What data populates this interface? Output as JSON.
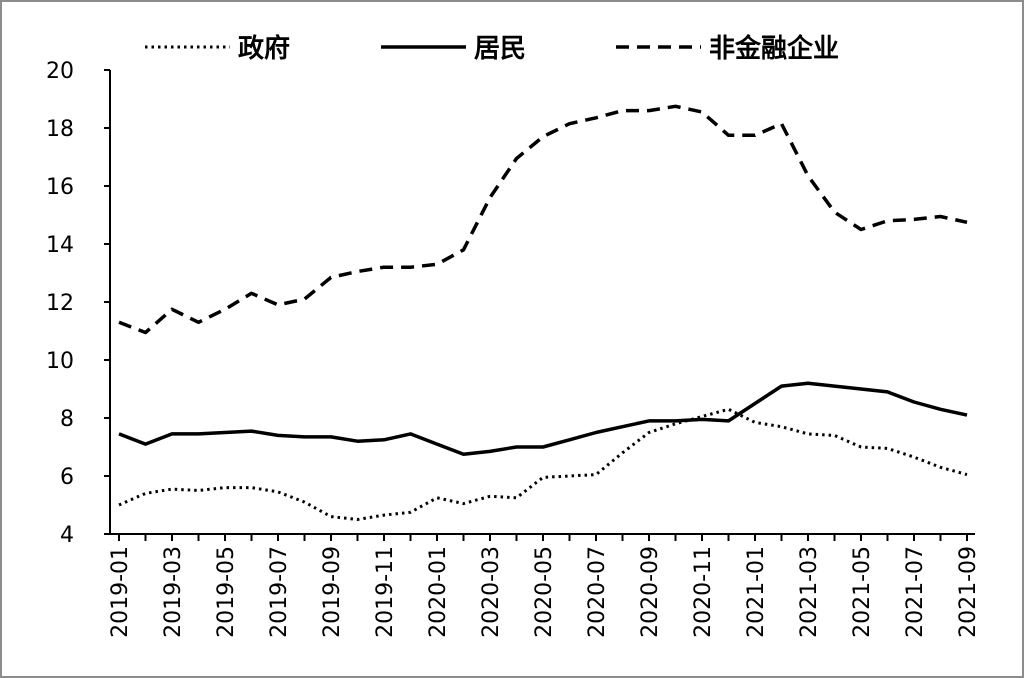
{
  "chart_data": {
    "type": "line",
    "title": "",
    "xlabel": "",
    "ylabel": "",
    "ylim": [
      4,
      20
    ],
    "yticks": [
      4,
      6,
      8,
      10,
      12,
      14,
      16,
      18,
      20
    ],
    "xticks": [
      "2019-01",
      "2019-03",
      "2019-05",
      "2019-07",
      "2019-09",
      "2019-11",
      "2020-01",
      "2020-03",
      "2020-05",
      "2020-07",
      "2020-09",
      "2020-11",
      "2021-01",
      "2021-03",
      "2021-05",
      "2021-07",
      "2021-09"
    ],
    "x": [
      "2019-01",
      "2019-02",
      "2019-03",
      "2019-04",
      "2019-05",
      "2019-06",
      "2019-07",
      "2019-08",
      "2019-09",
      "2019-10",
      "2019-11",
      "2019-12",
      "2020-01",
      "2020-02",
      "2020-03",
      "2020-04",
      "2020-05",
      "2020-06",
      "2020-07",
      "2020-08",
      "2020-09",
      "2020-10",
      "2020-11",
      "2020-12",
      "2021-01",
      "2021-02",
      "2021-03",
      "2021-04",
      "2021-05",
      "2021-06",
      "2021-07",
      "2021-08",
      "2021-09"
    ],
    "legend_position": "top",
    "grid": false,
    "series": [
      {
        "name": "政府",
        "style": "dotted",
        "color": "#000000",
        "values": [
          5.0,
          5.4,
          5.55,
          5.5,
          5.6,
          5.6,
          5.45,
          5.1,
          4.6,
          4.5,
          4.65,
          4.75,
          5.25,
          5.05,
          5.3,
          5.25,
          5.95,
          6.0,
          6.05,
          6.8,
          7.5,
          7.8,
          8.05,
          8.3,
          7.85,
          7.7,
          7.45,
          7.4,
          7.0,
          6.95,
          6.65,
          6.3,
          6.05
        ]
      },
      {
        "name": "居民",
        "style": "solid",
        "color": "#000000",
        "values": [
          7.45,
          7.1,
          7.45,
          7.45,
          7.5,
          7.55,
          7.4,
          7.35,
          7.35,
          7.2,
          7.25,
          7.45,
          7.1,
          6.75,
          6.85,
          7.0,
          7.0,
          7.25,
          7.5,
          7.7,
          7.9,
          7.9,
          7.95,
          7.9,
          8.5,
          9.1,
          9.2,
          9.1,
          9.0,
          8.9,
          8.55,
          8.3,
          8.1
        ]
      },
      {
        "name": "非金融企业",
        "style": "dashed",
        "color": "#000000",
        "values": [
          11.3,
          10.95,
          11.75,
          11.3,
          11.75,
          12.3,
          11.9,
          12.1,
          12.85,
          13.05,
          13.2,
          13.2,
          13.3,
          13.8,
          15.6,
          16.95,
          17.7,
          18.15,
          18.35,
          18.6,
          18.6,
          18.75,
          18.55,
          17.75,
          17.75,
          18.15,
          16.35,
          15.1,
          14.5,
          14.8,
          14.85,
          14.95,
          14.75
        ]
      }
    ]
  }
}
